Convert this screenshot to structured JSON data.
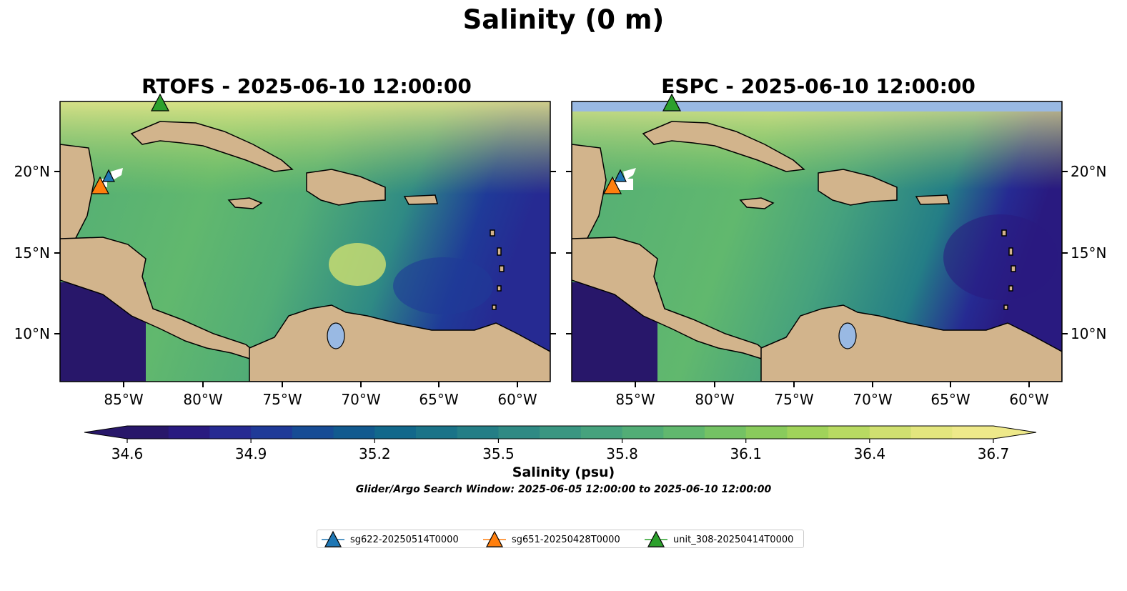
{
  "figure": {
    "suptitle": "Salinity (0 m)",
    "panels": [
      {
        "title": "RTOFS - 2025-06-10 12:00:00"
      },
      {
        "title": "ESPC - 2025-06-10 12:00:00"
      }
    ],
    "lat_ticks": [
      "20°N",
      "15°N",
      "10°N"
    ],
    "lon_ticks": [
      "85°W",
      "80°W",
      "75°W",
      "70°W",
      "65°W",
      "60°W"
    ],
    "colorbar": {
      "label": "Salinity (psu)",
      "ticks": [
        "34.6",
        "34.9",
        "35.2",
        "35.5",
        "35.8",
        "36.1",
        "36.4",
        "36.7"
      ],
      "min": 34.6,
      "max": 36.7,
      "extend": "both",
      "colormap": "haline",
      "colors": [
        "#28176a",
        "#291a80",
        "#262a92",
        "#1f3a98",
        "#174c95",
        "#125a8f",
        "#12688b",
        "#1a7388",
        "#247e86",
        "#2f8a84",
        "#3a9681",
        "#46a27d",
        "#52ad76",
        "#61b86e",
        "#74c264",
        "#89cb5c",
        "#a0d35a",
        "#b8da62",
        "#d0e070",
        "#e3e67e",
        "#eee98a"
      ]
    },
    "search_window": "Glider/Argo Search Window: 2025-06-05 12:00:00 to 2025-06-10 12:00:00",
    "legend": [
      {
        "label": "sg622-20250514T0000",
        "color": "#1f77b4"
      },
      {
        "label": "sg651-20250428T0000",
        "color": "#ff7f0e"
      },
      {
        "label": "unit_308-20250414T0000",
        "color": "#2ca02c"
      }
    ],
    "colors": {
      "land": "#d2b48c",
      "lake": "#99b9e3",
      "pacific": "#28176a",
      "gridline_nodata": "#99b9e3"
    }
  }
}
